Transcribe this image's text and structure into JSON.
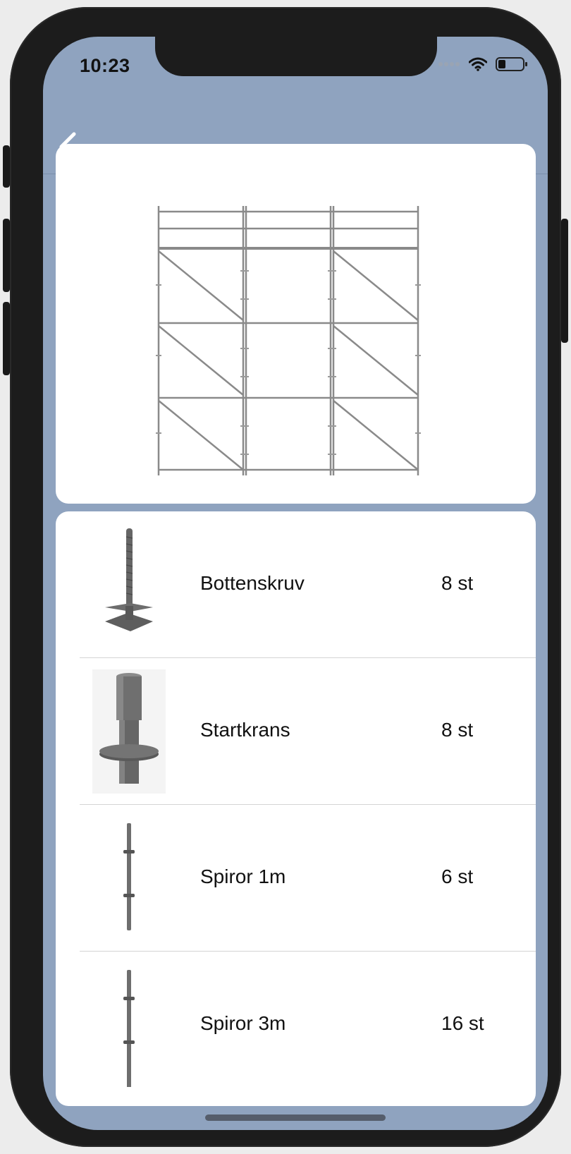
{
  "status_bar": {
    "time": "10:23"
  },
  "nav": {
    "back_icon": "chevron-left-icon"
  },
  "colors": {
    "screen_bg": "#8fa3bf",
    "card_bg": "#ffffff",
    "text": "#111111"
  },
  "items": [
    {
      "name": "Bottenskruv",
      "qty": "8 st",
      "icon": "base-jack-icon"
    },
    {
      "name": "Startkrans",
      "qty": "8 st",
      "icon": "base-collar-icon"
    },
    {
      "name": "Spiror 1m",
      "qty": "6 st",
      "icon": "standard-1m-icon"
    },
    {
      "name": "Spiror 3m",
      "qty": "16 st",
      "icon": "standard-3m-icon"
    }
  ]
}
